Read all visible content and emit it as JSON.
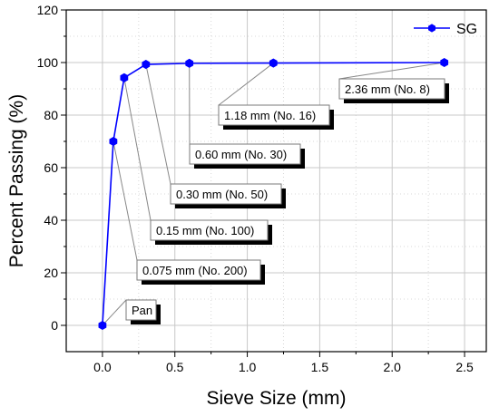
{
  "chart_data": {
    "type": "line",
    "xlabel": "Sieve Size (mm)",
    "ylabel": "Percent Passing (%)",
    "xlim": [
      -0.25,
      2.65
    ],
    "ylim": [
      -10,
      120
    ],
    "xticks": [
      0.0,
      0.5,
      1.0,
      1.5,
      2.0,
      2.5
    ],
    "xtick_labels": [
      "0.0",
      "0.5",
      "1.0",
      "1.5",
      "2.0",
      "2.5"
    ],
    "yticks": [
      0,
      20,
      40,
      60,
      80,
      100,
      120
    ],
    "ytick_labels": [
      "0",
      "20",
      "40",
      "60",
      "80",
      "100",
      "120"
    ],
    "grid": true,
    "legend_position": "top-right",
    "series": [
      {
        "name": "SG",
        "color": "#0000ff",
        "marker": "hexagon",
        "x": [
          0,
          0.075,
          0.15,
          0.3,
          0.6,
          1.18,
          2.36
        ],
        "y": [
          0,
          70,
          94.2,
          99.3,
          99.7,
          99.8,
          100
        ]
      }
    ],
    "annotations": [
      {
        "text": "Pan",
        "point_index": 0
      },
      {
        "text": "0.075 mm (No. 200)",
        "point_index": 1
      },
      {
        "text": "0.15 mm (No. 100)",
        "point_index": 2
      },
      {
        "text": "0.30 mm (No. 50)",
        "point_index": 3
      },
      {
        "text": "0.60 mm (No. 30)",
        "point_index": 4
      },
      {
        "text": "1.18 mm (No. 16)",
        "point_index": 5
      },
      {
        "text": "2.36 mm (No. 8)",
        "point_index": 6
      }
    ]
  }
}
